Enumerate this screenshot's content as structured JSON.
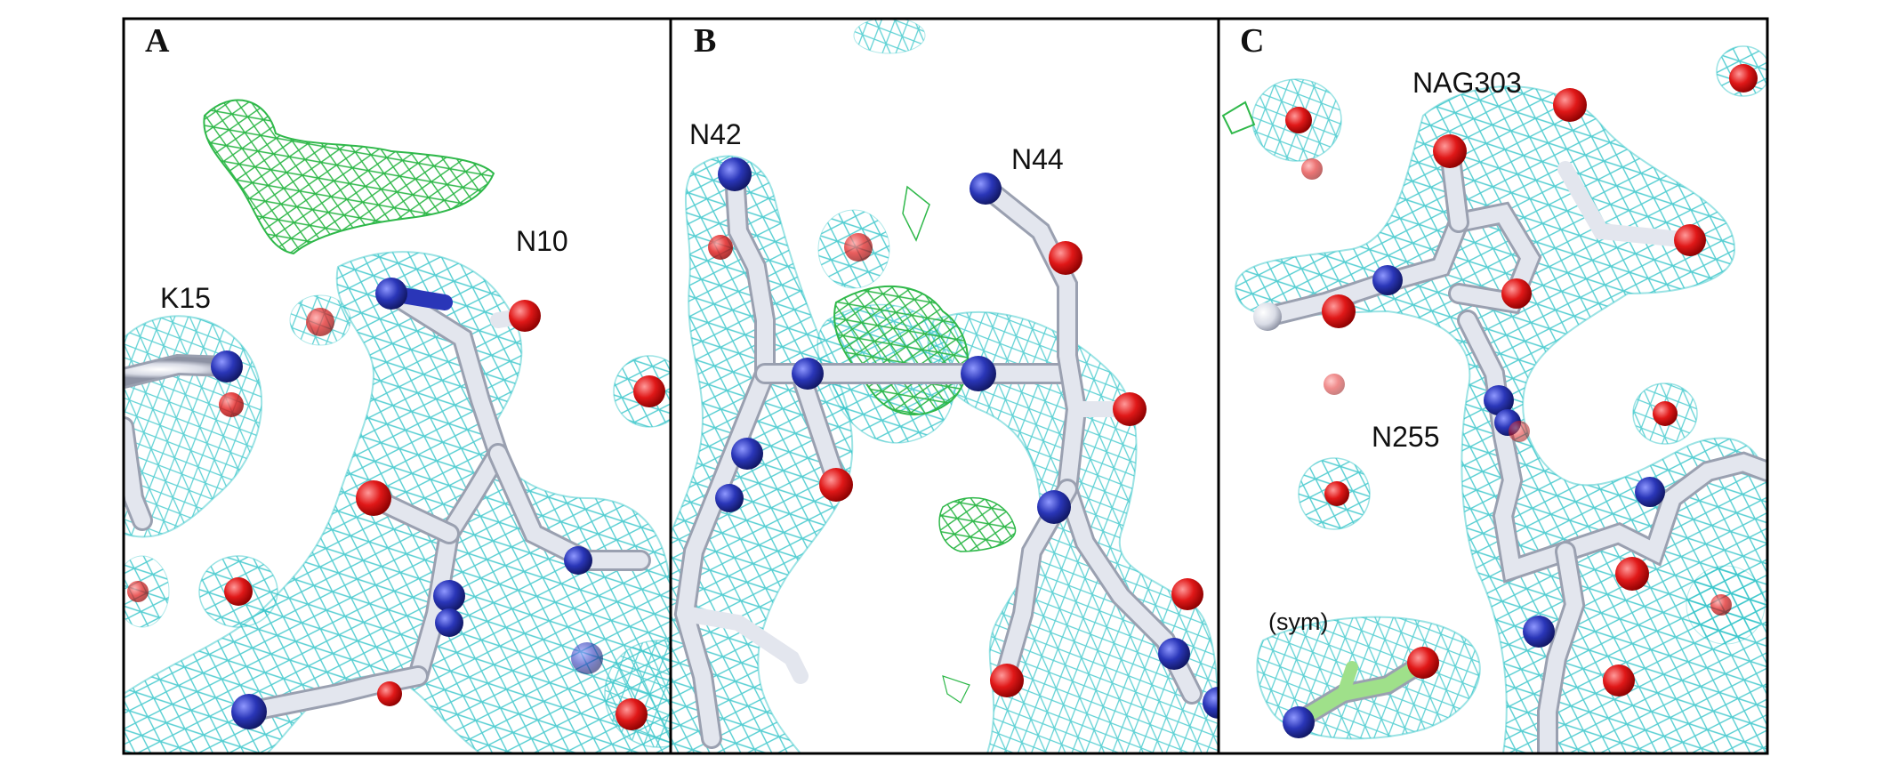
{
  "figure": {
    "panels": [
      {
        "letter": "A",
        "labels": [
          "K15",
          "N10"
        ]
      },
      {
        "letter": "B",
        "labels": [
          "N42",
          "N44"
        ]
      },
      {
        "letter": "C",
        "labels": [
          "NAG303",
          "N255",
          "(sym)"
        ]
      }
    ],
    "colors": {
      "density_mesh": "#22c0c4",
      "difference_density": "#2fb84a",
      "carbon": "#e3e6ee",
      "nitrogen": "#2a36b8",
      "oxygen": "#e01818",
      "sym_carbon": "#9fe08a",
      "frame": "#000000"
    },
    "icons": [
      "electron-density-mesh",
      "stick-model"
    ]
  }
}
